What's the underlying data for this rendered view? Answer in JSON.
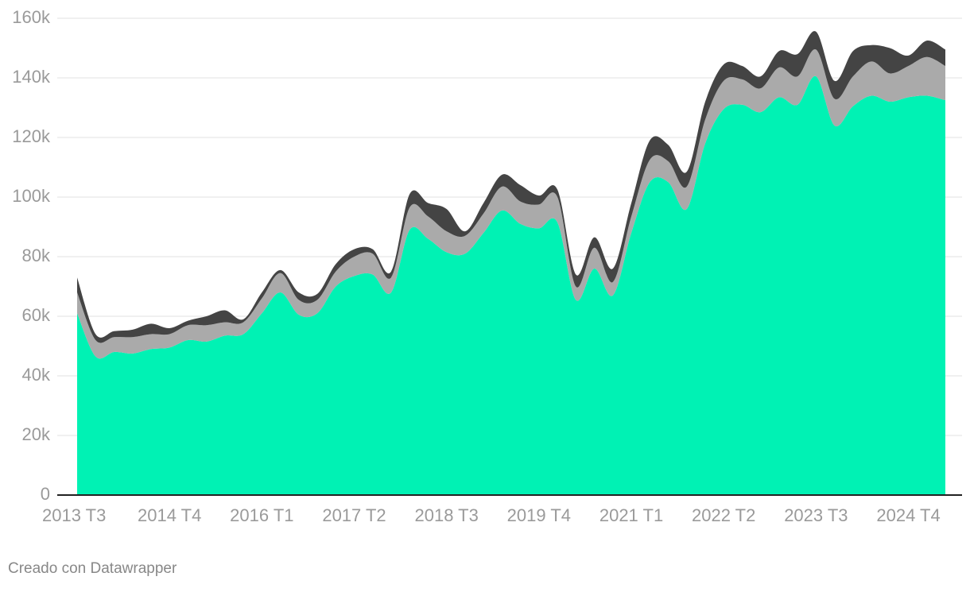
{
  "chart_data": {
    "type": "stacked_area",
    "categories": [
      "2013 T3",
      null,
      null,
      null,
      null,
      "2014 T4",
      null,
      null,
      null,
      null,
      "2016 T1",
      null,
      null,
      null,
      null,
      "2017 T2",
      null,
      null,
      null,
      null,
      "2018 T3",
      null,
      null,
      null,
      null,
      "2019 T4",
      null,
      null,
      null,
      null,
      "2021 T1",
      null,
      null,
      null,
      null,
      "2022 T2",
      null,
      null,
      null,
      null,
      "2023 T3",
      null,
      null,
      null,
      null,
      "2024 T4",
      null,
      null
    ],
    "series": [
      {
        "color": "#00f2b4",
        "values": [
          61000,
          46500,
          48000,
          47500,
          49000,
          49500,
          52000,
          51500,
          53500,
          54000,
          61000,
          68000,
          60500,
          61000,
          70000,
          73500,
          74000,
          68000,
          89000,
          86000,
          81500,
          81000,
          88000,
          95500,
          91000,
          89500,
          91500,
          65500,
          76000,
          67000,
          88000,
          105000,
          105000,
          96000,
          118000,
          129500,
          131000,
          128500,
          133500,
          131000,
          140500,
          124000,
          130500,
          134000,
          132000,
          133500,
          134000,
          132500
        ]
      },
      {
        "color": "#aaaaaa",
        "values": [
          7000,
          5500,
          5000,
          5500,
          5000,
          4500,
          5000,
          5500,
          4500,
          4000,
          5000,
          6500,
          5000,
          4500,
          5000,
          6500,
          7000,
          5000,
          7500,
          7500,
          7000,
          6000,
          6500,
          8000,
          7500,
          8000,
          8500,
          4500,
          7000,
          4500,
          5500,
          7500,
          7000,
          7500,
          8000,
          9500,
          8500,
          8000,
          10000,
          9500,
          9000,
          9000,
          10000,
          11500,
          9500,
          10500,
          13000,
          11500
        ]
      },
      {
        "color": "#444444",
        "values": [
          5000,
          2000,
          2000,
          2500,
          3500,
          2000,
          1500,
          3000,
          4000,
          1000,
          2000,
          1000,
          2500,
          2000,
          2500,
          2500,
          1500,
          2000,
          4500,
          4500,
          7500,
          1500,
          3500,
          4000,
          5500,
          3000,
          2500,
          4000,
          3500,
          4500,
          4500,
          6500,
          5500,
          5000,
          6000,
          5500,
          4500,
          4000,
          5500,
          7500,
          6000,
          6000,
          8500,
          5500,
          8500,
          3500,
          5500,
          5500
        ]
      }
    ],
    "ylim": [
      0,
      160000
    ],
    "yticks": [
      0,
      {
        "value": 20000,
        "label": "20k"
      },
      {
        "value": 40000,
        "label": "40k"
      },
      {
        "value": 60000,
        "label": "60k"
      },
      {
        "value": 80000,
        "label": "80k"
      },
      {
        "value": 100000,
        "label": "100k"
      },
      {
        "value": 120000,
        "label": "120k"
      },
      {
        "value": 140000,
        "label": "140k"
      },
      {
        "value": 160000,
        "label": "160k"
      }
    ],
    "grid": true,
    "credit": "Creado con Datawrapper"
  }
}
